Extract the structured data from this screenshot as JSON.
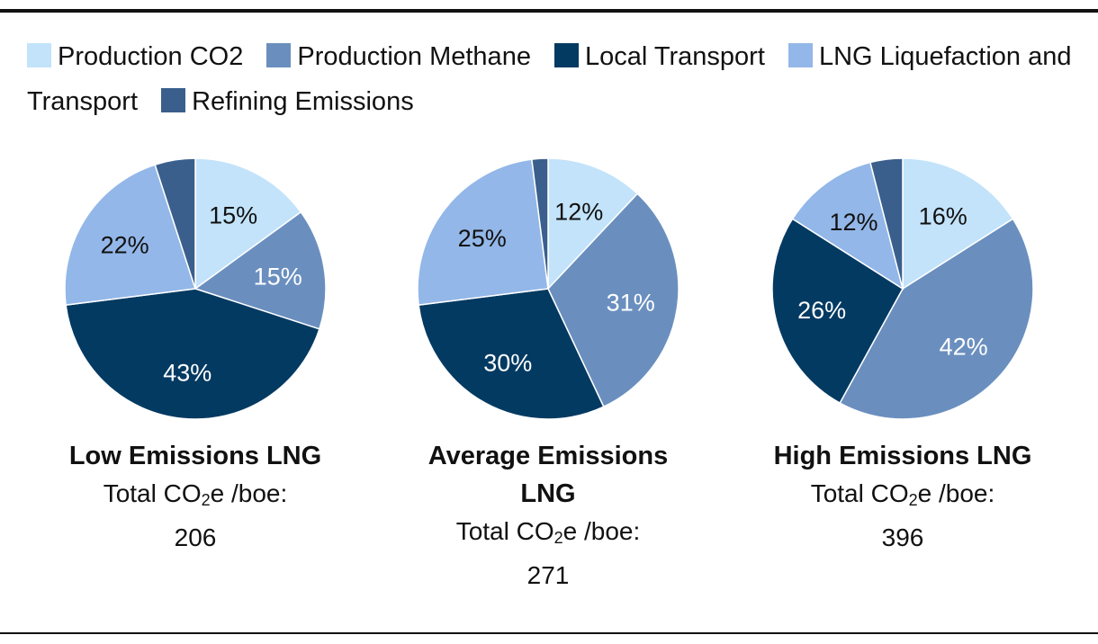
{
  "chart_data": {
    "type": "pie",
    "legend": {
      "placement": "top",
      "entries": [
        {
          "name": "Production CO2",
          "color": "#c2e3fa"
        },
        {
          "name": "Production Methane",
          "color": "#6a8fbf"
        },
        {
          "name": "Local Transport",
          "color": "#033a62"
        },
        {
          "name": "LNG Liquefaction and Transport",
          "color": "#93b7e8"
        },
        {
          "name": "Refining Emissions",
          "color": "#3a5f8c"
        }
      ]
    },
    "pies": [
      {
        "title": "Low Emissions LNG",
        "total_label": "Total CO",
        "total_sub": "2",
        "total_suffix": "e /boe:",
        "total_value": "206",
        "slices": [
          {
            "name": "Production CO2",
            "value": 15,
            "label": "15%"
          },
          {
            "name": "Production Methane",
            "value": 15,
            "label": "15%"
          },
          {
            "name": "Local Transport",
            "value": 43,
            "label": "43%"
          },
          {
            "name": "LNG Liquefaction and Transport",
            "value": 22,
            "label": "22%"
          },
          {
            "name": "Refining Emissions",
            "value": 5,
            "label": ""
          }
        ]
      },
      {
        "title": "Average Emissions LNG",
        "total_label": "Total CO",
        "total_sub": "2",
        "total_suffix": "e /boe:",
        "total_value": "271",
        "slices": [
          {
            "name": "Production CO2",
            "value": 12,
            "label": "12%"
          },
          {
            "name": "Production Methane",
            "value": 31,
            "label": "31%"
          },
          {
            "name": "Local Transport",
            "value": 30,
            "label": "30%"
          },
          {
            "name": "LNG Liquefaction and Transport",
            "value": 25,
            "label": "25%"
          },
          {
            "name": "Refining Emissions",
            "value": 2,
            "label": ""
          }
        ]
      },
      {
        "title": "High Emissions LNG",
        "total_label": "Total CO",
        "total_sub": "2",
        "total_suffix": "e /boe:",
        "total_value": "396",
        "slices": [
          {
            "name": "Production CO2",
            "value": 16,
            "label": "16%"
          },
          {
            "name": "Production Methane",
            "value": 42,
            "label": "42%"
          },
          {
            "name": "Local Transport",
            "value": 26,
            "label": "26%"
          },
          {
            "name": "LNG Liquefaction and Transport",
            "value": 12,
            "label": "12%"
          },
          {
            "name": "Refining Emissions",
            "value": 4,
            "label": ""
          }
        ]
      }
    ]
  }
}
